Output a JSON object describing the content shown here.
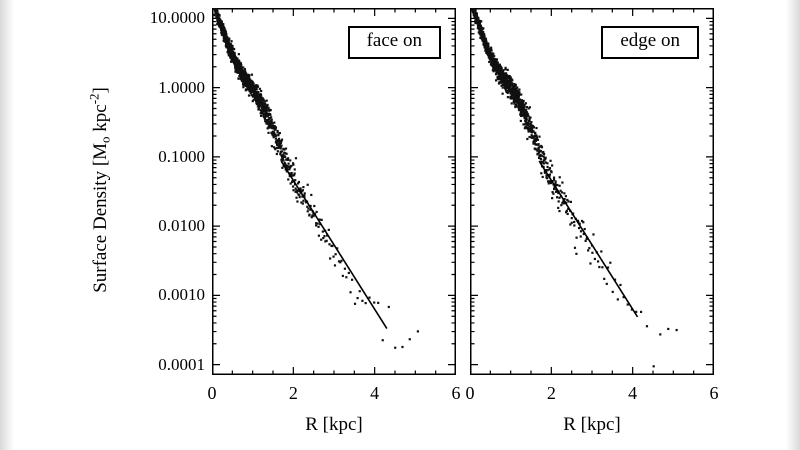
{
  "chart_data": {
    "type": "scatter",
    "panels": [
      {
        "label": "face on",
        "line_range": [
          1.7,
          4.3
        ]
      },
      {
        "label": "edge on",
        "line_range": [
          1.7,
          4.12
        ]
      }
    ],
    "x": {
      "label": "R [kpc]",
      "range": [
        0,
        6
      ],
      "major_ticks": [
        0,
        2,
        4,
        6
      ],
      "minor_step": 0.5
    },
    "y": {
      "label_pre": "Surface Density [M",
      "label_sub": "o",
      "label_mid": " kpc",
      "label_sup": "-2",
      "label_post": "]",
      "scale": "log",
      "range_log": [
        -4.15,
        1.15
      ],
      "tick_labels": [
        "10.0000",
        "1.0000",
        "0.1000",
        "0.0100",
        "0.0010",
        "0.0001"
      ],
      "tick_values_log": [
        1,
        0,
        -1,
        -2,
        -3,
        -4
      ]
    },
    "profile_log10": [
      [
        0,
        1.25
      ],
      [
        0.2,
        0.93
      ],
      [
        0.4,
        0.6
      ],
      [
        0.6,
        0.34
      ],
      [
        0.8,
        0.14
      ],
      [
        1.0,
        0.0
      ],
      [
        1.2,
        -0.2
      ],
      [
        1.4,
        -0.45
      ],
      [
        1.6,
        -0.75
      ],
      [
        1.8,
        -1.05
      ],
      [
        2.0,
        -1.32
      ],
      [
        2.4,
        -1.75
      ],
      [
        2.8,
        -2.15
      ],
      [
        3.2,
        -2.55
      ],
      [
        3.6,
        -2.92
      ],
      [
        4.0,
        -3.25
      ],
      [
        4.4,
        -3.45
      ],
      [
        4.8,
        -3.55
      ],
      [
        5.25,
        -3.62
      ]
    ],
    "line_fit": {
      "intercept": 0.52,
      "slope": -0.93
    },
    "scatter_model": {
      "step": 0.012,
      "coeff": 12,
      "power": 0.6,
      "taper": 2.5,
      "sigma_base": 0.04,
      "sigma_slope": 0.035,
      "r_max": 5.25
    },
    "legend_position": "top-right-in-panel",
    "grid": false,
    "colors": {
      "points": "#111111",
      "line": "#000000",
      "axis": "#000000"
    }
  }
}
